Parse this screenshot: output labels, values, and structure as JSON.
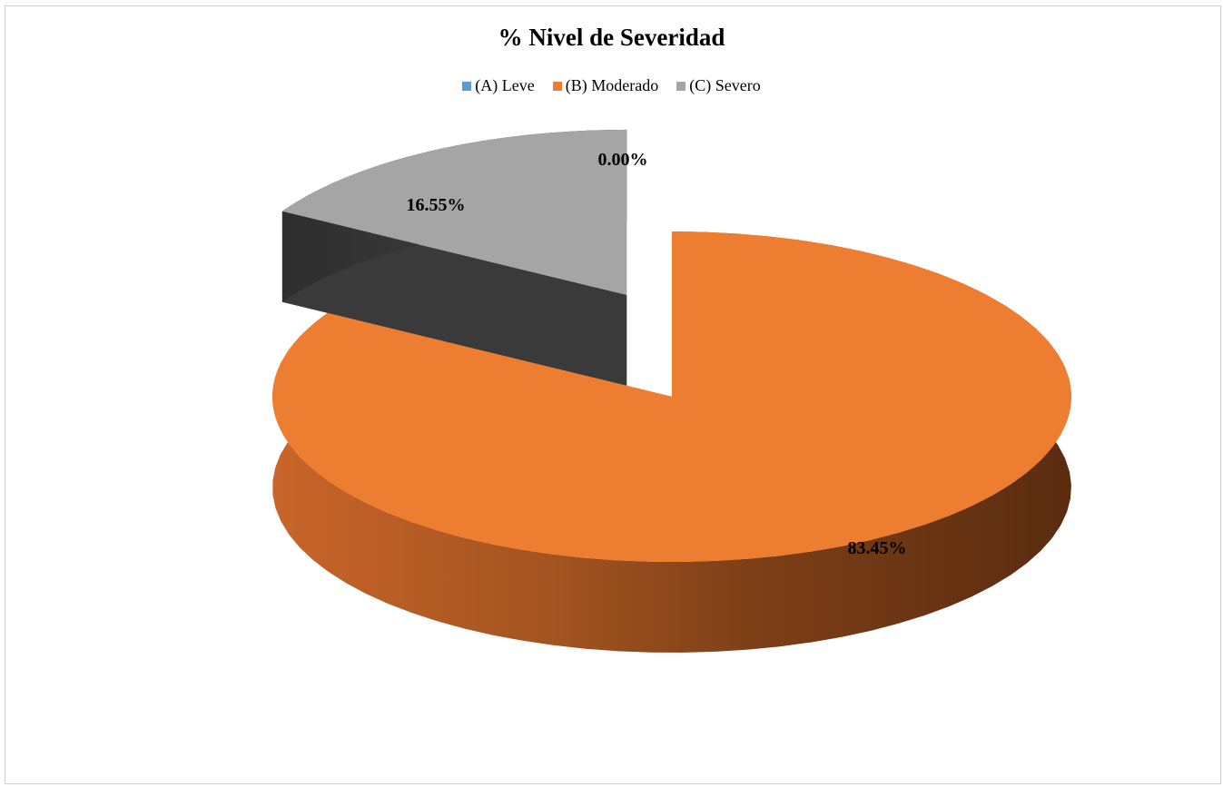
{
  "chart_data": {
    "type": "pie",
    "title": "% Nivel de Severidad",
    "categories": [
      "(A) Leve",
      "(B) Moderado",
      "(C) Severo"
    ],
    "values": [
      0.0,
      83.45,
      16.55
    ],
    "data_labels": [
      "0.00%",
      "83.45%",
      "16.55%"
    ],
    "colors": [
      "#5b9bd5",
      "#ed7d31",
      "#a5a5a5"
    ],
    "legend_position": "top",
    "style": "3d exploded pie"
  }
}
